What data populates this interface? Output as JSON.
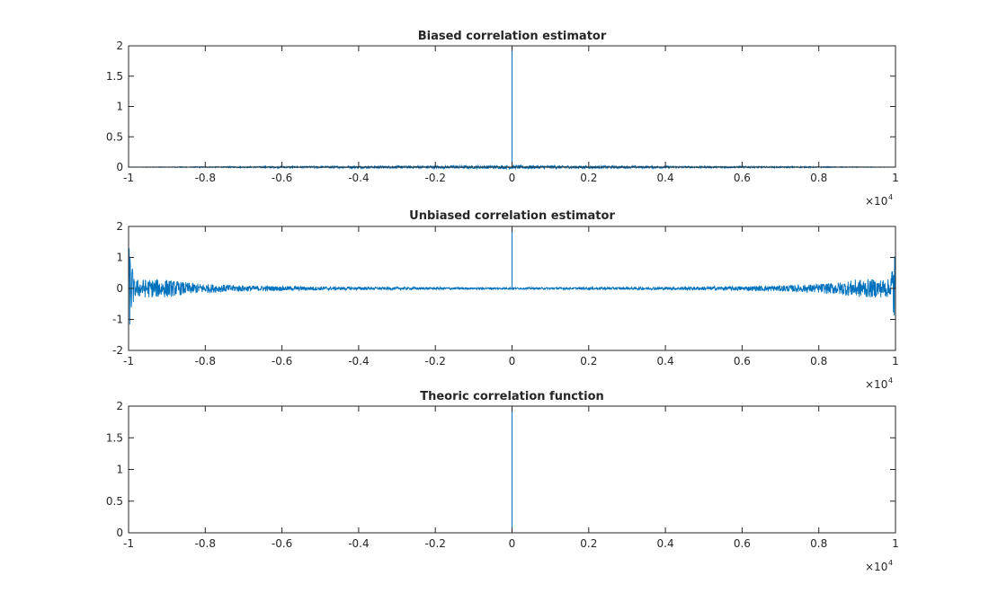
{
  "chart_data": [
    {
      "type": "line",
      "title": "Biased correlation estimator",
      "x_exponent_label": "×10",
      "x_exponent_power": "4",
      "xlim": [
        -10000,
        10000
      ],
      "ylim": [
        0,
        2
      ],
      "xticks": [
        -1,
        -0.8,
        -0.6,
        -0.4,
        -0.2,
        0,
        0.2,
        0.4,
        0.6,
        0.8,
        1
      ],
      "xtick_labels": [
        "-1",
        "-0.8",
        "-0.6",
        "-0.4",
        "-0.2",
        "0",
        "0.2",
        "0.4",
        "0.6",
        "0.8",
        "1"
      ],
      "yticks": [
        0,
        0.5,
        1,
        1.5,
        2
      ],
      "ytick_labels": [
        "0",
        "0.5",
        "1",
        "1.5",
        "2"
      ],
      "series": [
        {
          "color": "#0072bd",
          "peak": {
            "x": 0,
            "y": 2
          },
          "noise": {
            "baseline": 0,
            "center_amplitude": 0.03,
            "edge_amplitude": 0.003,
            "profile": "triangular",
            "edge_spike": 0
          }
        }
      ]
    },
    {
      "type": "line",
      "title": "Unbiased correlation estimator",
      "x_exponent_label": "×10",
      "x_exponent_power": "4",
      "xlim": [
        -10000,
        10000
      ],
      "ylim": [
        -2,
        2
      ],
      "xticks": [
        -1,
        -0.8,
        -0.6,
        -0.4,
        -0.2,
        0,
        0.2,
        0.4,
        0.6,
        0.8,
        1
      ],
      "xtick_labels": [
        "-1",
        "-0.8",
        "-0.6",
        "-0.4",
        "-0.2",
        "0",
        "0.2",
        "0.4",
        "0.6",
        "0.8",
        "1"
      ],
      "yticks": [
        -2,
        -1,
        0,
        1,
        2
      ],
      "ytick_labels": [
        "-2",
        "-1",
        "0",
        "1",
        "2"
      ],
      "series": [
        {
          "color": "#0072bd",
          "peak": {
            "x": 0,
            "y": 2
          },
          "noise": {
            "baseline": 0,
            "center_amplitude": 0.03,
            "edge_amplitude": 0.3,
            "profile": "inverse",
            "edge_spike": 1.3
          }
        }
      ]
    },
    {
      "type": "line",
      "title": "Theoric correlation function",
      "x_exponent_label": "×10",
      "x_exponent_power": "4",
      "xlim": [
        -10000,
        10000
      ],
      "ylim": [
        0,
        2
      ],
      "xticks": [
        -1,
        -0.8,
        -0.6,
        -0.4,
        -0.2,
        0,
        0.2,
        0.4,
        0.6,
        0.8,
        1
      ],
      "xtick_labels": [
        "-1",
        "-0.8",
        "-0.6",
        "-0.4",
        "-0.2",
        "0",
        "0.2",
        "0.4",
        "0.6",
        "0.8",
        "1"
      ],
      "yticks": [
        0,
        0.5,
        1,
        1.5,
        2
      ],
      "ytick_labels": [
        "0",
        "0.5",
        "1",
        "1.5",
        "2"
      ],
      "series": [
        {
          "color": "#0072bd",
          "peak": {
            "x": 0,
            "y": 2
          },
          "noise": {
            "baseline": 0,
            "center_amplitude": 0,
            "edge_amplitude": 0,
            "profile": "none",
            "edge_spike": 0
          }
        }
      ]
    }
  ]
}
